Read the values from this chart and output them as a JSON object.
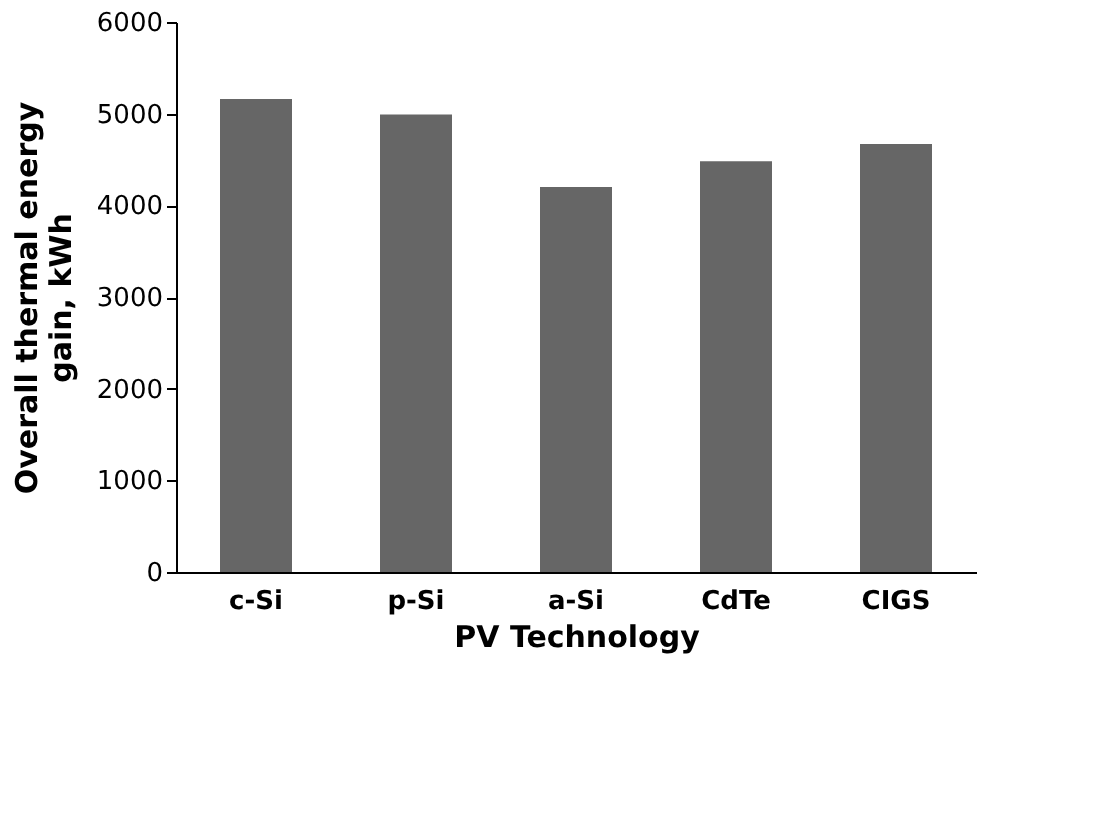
{
  "chart_data": {
    "type": "bar",
    "xlabel": "PV Technology",
    "ylabel": "Overall thermal energy gain, kWh",
    "categories": [
      "c-Si",
      "p-Si",
      "a-Si",
      "CdTe",
      "CIGS"
    ],
    "values": [
      5160,
      4990,
      4200,
      4480,
      4670
    ],
    "color": "#666666",
    "ylim": [
      0,
      6000
    ],
    "yticks": [
      0,
      1000,
      2000,
      3000,
      4000,
      5000,
      6000
    ],
    "grid": false
  }
}
